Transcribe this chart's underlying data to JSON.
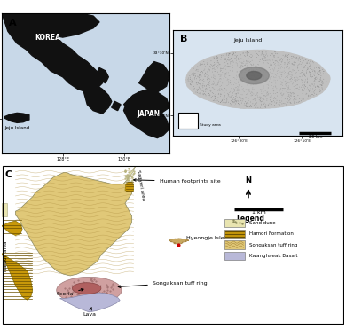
{
  "fig_bg": "#ffffff",
  "panel_A_bg": "#c8d8e8",
  "panel_B_bg": "#d8e4f0",
  "panel_C_bg": "#d8e4f0",
  "land_dark": "#111111",
  "jeju_label": "Jeju Island",
  "korea_label": "KOREA",
  "japan_label": "JAPAN",
  "dem_island_color": "#b8b8b8",
  "dem_dark": "#606060",
  "song_color": "#e0c878",
  "hamori_color": "#c8980a",
  "sand_color": "#e8e4b0",
  "kwang_color": "#b8b8d8",
  "scoria_color": "#c89090",
  "lava_color": "#b8b8cc"
}
